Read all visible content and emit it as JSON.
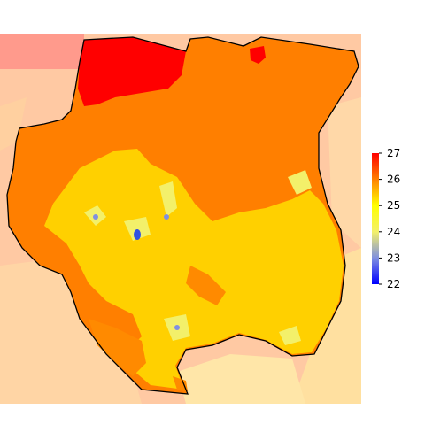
{
  "legend": {
    "ticks": [
      "27",
      "26",
      "25",
      "24",
      "23",
      "22"
    ],
    "scale": {
      "min": 22,
      "max": 27,
      "stops": [
        {
          "value": 22,
          "color": "#0000ff"
        },
        {
          "value": 23,
          "color": "#8090e0"
        },
        {
          "value": 24,
          "color": "#f3f06a"
        },
        {
          "value": 25,
          "color": "#ffff00"
        },
        {
          "value": 26,
          "color": "#ff8000"
        },
        {
          "value": 27,
          "color": "#ff0000"
        }
      ]
    }
  },
  "colors": {
    "background_land": "#ffc9a3",
    "background_light": "#ffe39a",
    "country_orange": "#ff7f00",
    "country_yellow": "#ffd000",
    "country_red": "#ff0000",
    "border": "#000000"
  }
}
